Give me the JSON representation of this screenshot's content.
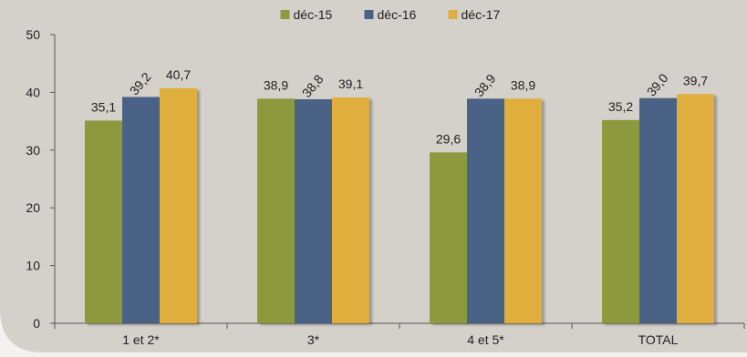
{
  "chart_data": {
    "type": "bar",
    "categories": [
      "1 et 2*",
      "3*",
      "4 et 5*",
      "TOTAL"
    ],
    "series": [
      {
        "name": "déc-15",
        "color": "#8c9a3c",
        "values": [
          35.1,
          38.9,
          29.6,
          35.2
        ],
        "labels": [
          "35,1",
          "38,9",
          "29,6",
          "35,2"
        ]
      },
      {
        "name": "déc-16",
        "color": "#4a6286",
        "values": [
          39.2,
          38.8,
          38.9,
          39.0
        ],
        "labels": [
          "39,2",
          "38,8",
          "38,9",
          "39,0"
        ]
      },
      {
        "name": "déc-17",
        "color": "#e0ae3e",
        "values": [
          40.7,
          39.1,
          38.9,
          39.7
        ],
        "labels": [
          "40,7",
          "39,1",
          "38,9",
          "39,7"
        ]
      }
    ],
    "ylim": [
      0,
      50
    ],
    "yticks": [
      0,
      10,
      20,
      30,
      40,
      50
    ],
    "legend_position": "top",
    "grid": false,
    "background": "#d3d1c9"
  }
}
